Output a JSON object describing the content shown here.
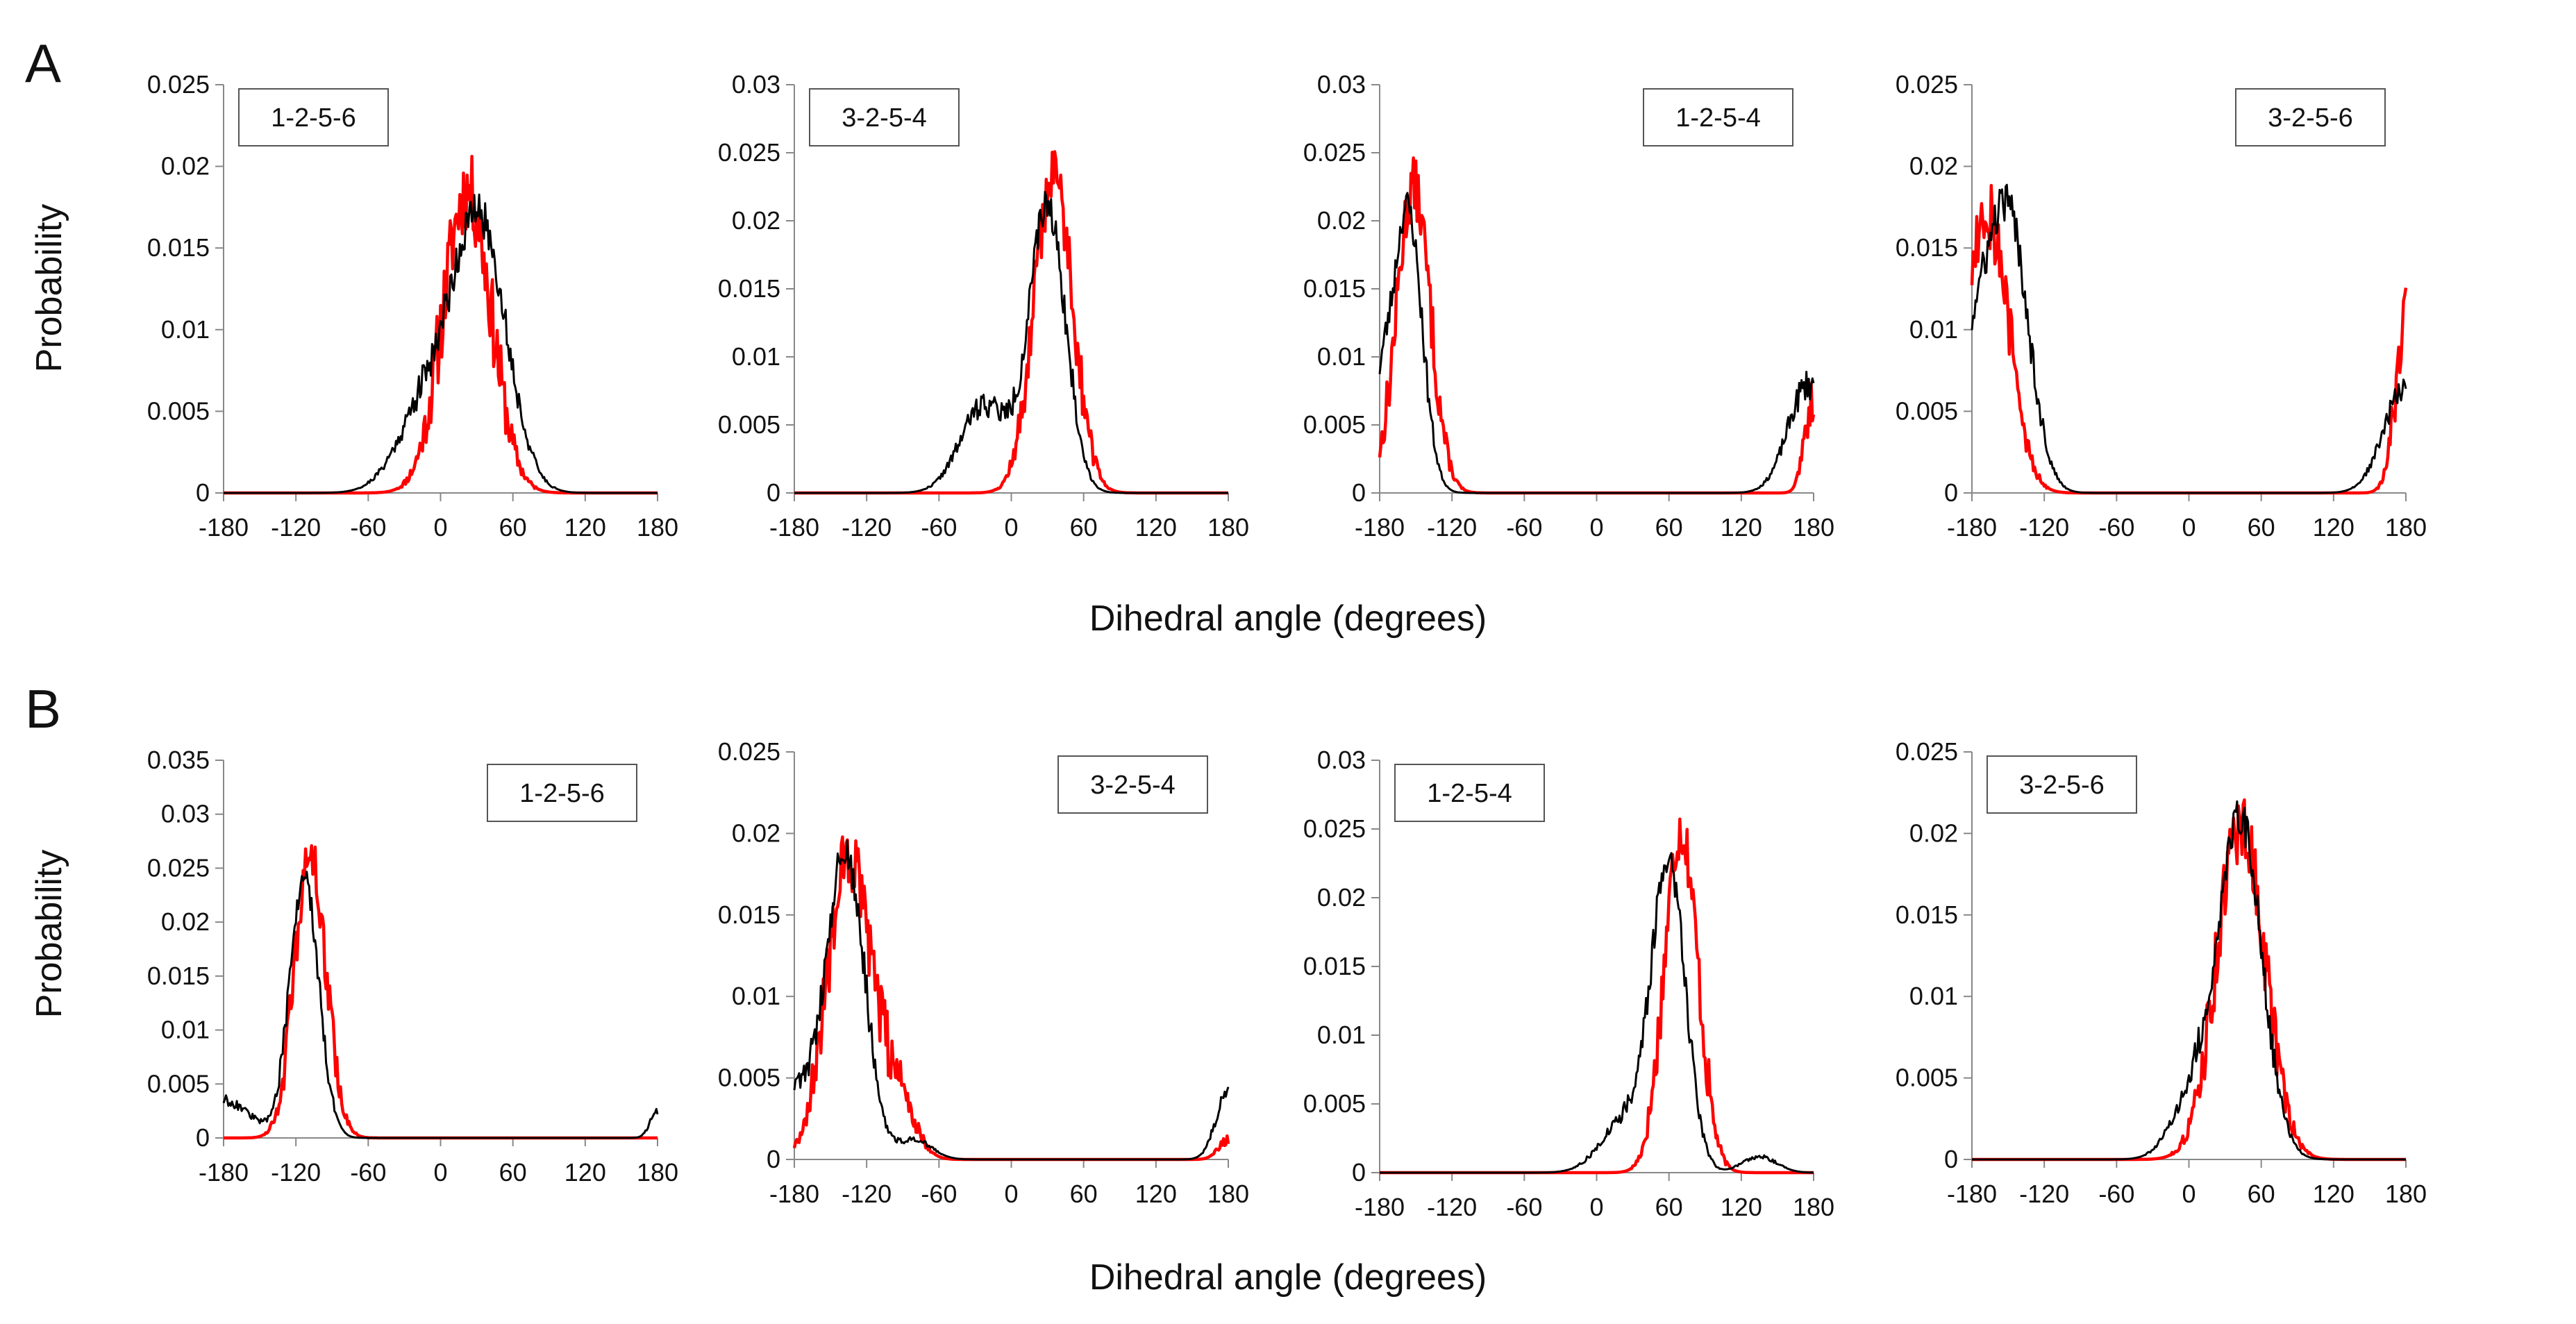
{
  "figure": {
    "panel_labels": [
      "A",
      "B"
    ],
    "ylabel": "Probability",
    "xlabel": "Dihedral angle (degrees)",
    "series_colors": {
      "red": "#ff0000",
      "black": "#000000"
    },
    "axis_color": "#888888"
  },
  "chart_data": [
    {
      "type": "line",
      "row": "A",
      "legend_label": "1-2-5-6",
      "legend_position": "top-left",
      "xlim": [
        -180,
        180
      ],
      "xticks": [
        "-180",
        "-120",
        "-60",
        "0",
        "60",
        "120",
        "180"
      ],
      "ylim": [
        0,
        0.025
      ],
      "yticks": [
        "0",
        "0.005",
        "0.01",
        "0.015",
        "0.02",
        "0.025"
      ],
      "series": [
        {
          "name": "red",
          "color": "#ff0000",
          "mode": "peaks",
          "noise": 0.0025,
          "seed": 11,
          "peaks": [
            {
              "x": 22,
              "w": 20,
              "a": 0.0185
            }
          ]
        },
        {
          "name": "black",
          "color": "#000000",
          "mode": "peaks",
          "noise": 0.0012,
          "seed": 21,
          "peaks": [
            {
              "x": 33,
              "w": 22,
              "a": 0.016
            },
            {
              "x": -10,
              "w": 24,
              "a": 0.0055
            }
          ]
        }
      ]
    },
    {
      "type": "line",
      "row": "A",
      "legend_label": "3-2-5-4",
      "legend_position": "top-left",
      "xlim": [
        -180,
        180
      ],
      "xticks": [
        "-180",
        "-120",
        "-60",
        "0",
        "60",
        "120",
        "180"
      ],
      "ylim": [
        0,
        0.03
      ],
      "yticks": [
        "0",
        "0.005",
        "0.01",
        "0.015",
        "0.02",
        "0.025",
        "0.03"
      ],
      "series": [
        {
          "name": "red",
          "color": "#ff0000",
          "mode": "peaks",
          "noise": 0.0022,
          "seed": 12,
          "peaks": [
            {
              "x": 35,
              "w": 16,
              "a": 0.0235
            }
          ]
        },
        {
          "name": "black",
          "color": "#000000",
          "mode": "peaks",
          "noise": 0.0012,
          "seed": 22,
          "peaks": [
            {
              "x": 30,
              "w": 15,
              "a": 0.021
            },
            {
              "x": -22,
              "w": 20,
              "a": 0.0065
            }
          ]
        }
      ]
    },
    {
      "type": "line",
      "row": "A",
      "legend_label": "1-2-5-4",
      "legend_position": "top-right",
      "xlim": [
        -180,
        180
      ],
      "xticks": [
        "-180",
        "-120",
        "-60",
        "0",
        "60",
        "120",
        "180"
      ],
      "ylim": [
        0,
        0.03
      ],
      "yticks": [
        "0",
        "0.005",
        "0.01",
        "0.015",
        "0.02",
        "0.025",
        "0.03"
      ],
      "series": [
        {
          "name": "red",
          "color": "#ff0000",
          "mode": "peaks",
          "noise": 0.0022,
          "seed": 13,
          "peaks": [
            {
              "x": -152,
              "w": 14,
              "a": 0.0225
            },
            {
              "x": 180,
              "w": 7,
              "a": 0.007
            }
          ]
        },
        {
          "name": "black",
          "color": "#000000",
          "mode": "peaks",
          "noise": 0.0012,
          "seed": 23,
          "peaks": [
            {
              "x": -157,
              "w": 12,
              "a": 0.021
            },
            {
              "x": 176,
              "w": 17,
              "a": 0.008
            },
            {
              "x": -180,
              "w": 8,
              "a": 0.006
            }
          ]
        }
      ]
    },
    {
      "type": "line",
      "row": "A",
      "legend_label": "3-2-5-6",
      "legend_position": "top-right",
      "xlim": [
        -180,
        180
      ],
      "xticks": [
        "-180",
        "-120",
        "-60",
        "0",
        "60",
        "120",
        "180"
      ],
      "ylim": [
        0,
        0.025
      ],
      "yticks": [
        "0",
        "0.005",
        "0.01",
        "0.015",
        "0.02",
        "0.025"
      ],
      "series": [
        {
          "name": "red",
          "color": "#ff0000",
          "mode": "peaks",
          "noise": 0.0025,
          "seed": 14,
          "peaks": [
            {
              "x": -168,
              "w": 18,
              "a": 0.0175
            },
            {
              "x": 180,
              "w": 9,
              "a": 0.0105
            }
          ]
        },
        {
          "name": "black",
          "color": "#000000",
          "mode": "peaks",
          "noise": 0.0012,
          "seed": 24,
          "peaks": [
            {
              "x": -150,
              "w": 17,
              "a": 0.017
            },
            {
              "x": -180,
              "w": 14,
              "a": 0.007
            },
            {
              "x": 180,
              "w": 18,
              "a": 0.0065
            }
          ]
        }
      ]
    },
    {
      "type": "line",
      "row": "B",
      "legend_label": "1-2-5-6",
      "legend_position": "top-right",
      "xlim": [
        -180,
        180
      ],
      "xticks": [
        "-180",
        "-120",
        "-60",
        "0",
        "60",
        "120",
        "180"
      ],
      "ylim": [
        0,
        0.035
      ],
      "yticks": [
        "0",
        "0.005",
        "0.01",
        "0.015",
        "0.02",
        "0.025",
        "0.03",
        "0.035"
      ],
      "series": [
        {
          "name": "red",
          "color": "#ff0000",
          "mode": "peaks",
          "noise": 0.0022,
          "seed": 15,
          "peaks": [
            {
              "x": -108,
              "w": 13,
              "a": 0.026
            }
          ]
        },
        {
          "name": "black",
          "color": "#000000",
          "mode": "peaks",
          "noise": 0.0012,
          "seed": 25,
          "peaks": [
            {
              "x": -113,
              "w": 12,
              "a": 0.024
            },
            {
              "x": -180,
              "w": 22,
              "a": 0.0035
            },
            {
              "x": 180,
              "w": 6,
              "a": 0.0025
            }
          ]
        }
      ]
    },
    {
      "type": "line",
      "row": "B",
      "legend_label": "3-2-5-4",
      "legend_position": "top-right",
      "xlim": [
        -180,
        180
      ],
      "xticks": [
        "-180",
        "-120",
        "-60",
        "0",
        "60",
        "120",
        "180"
      ],
      "ylim": [
        0,
        0.025
      ],
      "yticks": [
        "0",
        "0.005",
        "0.01",
        "0.015",
        "0.02",
        "0.025"
      ],
      "series": [
        {
          "name": "red",
          "color": "#ff0000",
          "mode": "peaks",
          "noise": 0.0022,
          "seed": 16,
          "peaks": [
            {
              "x": -135,
              "w": 18,
              "a": 0.0185
            },
            {
              "x": -95,
              "w": 14,
              "a": 0.004
            },
            {
              "x": 180,
              "w": 8,
              "a": 0.0012
            }
          ]
        },
        {
          "name": "black",
          "color": "#000000",
          "mode": "peaks",
          "noise": 0.0012,
          "seed": 26,
          "peaks": [
            {
              "x": -138,
              "w": 16,
              "a": 0.019
            },
            {
              "x": -180,
              "w": 14,
              "a": 0.004
            },
            {
              "x": -80,
              "w": 14,
              "a": 0.0012
            },
            {
              "x": 180,
              "w": 10,
              "a": 0.0042
            }
          ]
        }
      ]
    },
    {
      "type": "line",
      "row": "B",
      "legend_label": "1-2-5-4",
      "legend_position": "top-left",
      "xlim": [
        -180,
        180
      ],
      "xticks": [
        "-180",
        "-120",
        "-60",
        "0",
        "60",
        "120",
        "180"
      ],
      "ylim": [
        0,
        0.03
      ],
      "yticks": [
        "0",
        "0.005",
        "0.01",
        "0.015",
        "0.02",
        "0.025",
        "0.03"
      ],
      "series": [
        {
          "name": "red",
          "color": "#ff0000",
          "mode": "peaks",
          "noise": 0.0022,
          "seed": 17,
          "peaks": [
            {
              "x": 70,
              "w": 14,
              "a": 0.025
            }
          ]
        },
        {
          "name": "black",
          "color": "#000000",
          "mode": "peaks",
          "noise": 0.0012,
          "seed": 27,
          "peaks": [
            {
              "x": 60,
              "w": 14,
              "a": 0.022
            },
            {
              "x": 25,
              "w": 20,
              "a": 0.004
            },
            {
              "x": 135,
              "w": 14,
              "a": 0.0012
            }
          ]
        }
      ]
    },
    {
      "type": "line",
      "row": "B",
      "legend_label": "3-2-5-6",
      "legend_position": "top-left",
      "xlim": [
        -180,
        180
      ],
      "xticks": [
        "-180",
        "-120",
        "-60",
        "0",
        "60",
        "120",
        "180"
      ],
      "ylim": [
        0,
        0.025
      ],
      "yticks": [
        "0",
        "0.005",
        "0.01",
        "0.015",
        "0.02",
        "0.025"
      ],
      "series": [
        {
          "name": "red",
          "color": "#ff0000",
          "mode": "peaks",
          "noise": 0.0022,
          "seed": 18,
          "peaks": [
            {
              "x": 43,
              "w": 20,
              "a": 0.0205
            }
          ]
        },
        {
          "name": "black",
          "color": "#000000",
          "mode": "peaks",
          "noise": 0.0012,
          "seed": 28,
          "peaks": [
            {
              "x": 43,
              "w": 18,
              "a": 0.0205
            },
            {
              "x": 5,
              "w": 18,
              "a": 0.004
            }
          ]
        }
      ]
    }
  ]
}
